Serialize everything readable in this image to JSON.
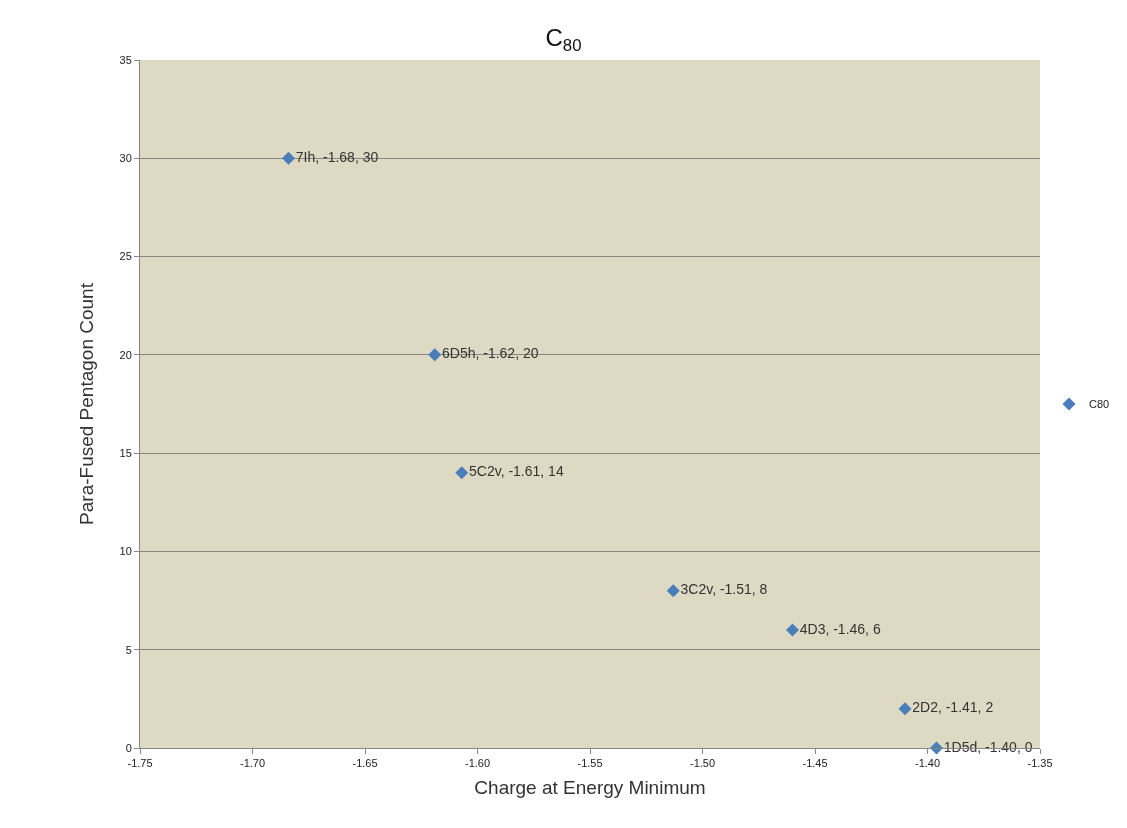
{
  "chart_data": {
    "type": "scatter",
    "title": "C$_{80}$",
    "xlabel": "Charge at Energy Minimum",
    "ylabel": "Para-Fused Pentagon Count",
    "series": [
      {
        "name": "C80",
        "color": "#4a7ebb",
        "x": [
          -1.684,
          -1.619,
          -1.607,
          -1.513,
          -1.46,
          -1.41,
          -1.396
        ],
        "values": [
          30,
          20,
          14,
          8,
          6,
          2,
          0
        ],
        "value_labels": [
          "7Ih, -1.68, 30",
          "6D5h, -1.62, 20",
          "5C2v, -1.61, 14",
          "3C2v, -1.51, 8",
          "4D3, -1.46, 6",
          "2D2, -1.41, 2",
          "1D5d, -1.40, 0"
        ]
      }
    ],
    "xlim": [
      -1.75,
      -1.35
    ],
    "xticks": [
      {
        "value": -1.75,
        "label": "-1.75"
      },
      {
        "value": -1.7,
        "label": "-1.70"
      },
      {
        "value": -1.65,
        "label": "-1.65"
      },
      {
        "value": -1.6,
        "label": "-1.60"
      },
      {
        "value": -1.55,
        "label": "-1.55"
      },
      {
        "value": -1.5,
        "label": "-1.50"
      },
      {
        "value": -1.45,
        "label": "-1.45"
      },
      {
        "value": -1.4,
        "label": "-1.40"
      },
      {
        "value": -1.35,
        "label": "-1.35"
      }
    ],
    "ylim": [
      0,
      35
    ],
    "yticks": [
      0,
      5,
      10,
      15,
      20,
      25,
      30,
      35
    ],
    "grid": "y",
    "legend": "right",
    "marker": "diamond"
  }
}
